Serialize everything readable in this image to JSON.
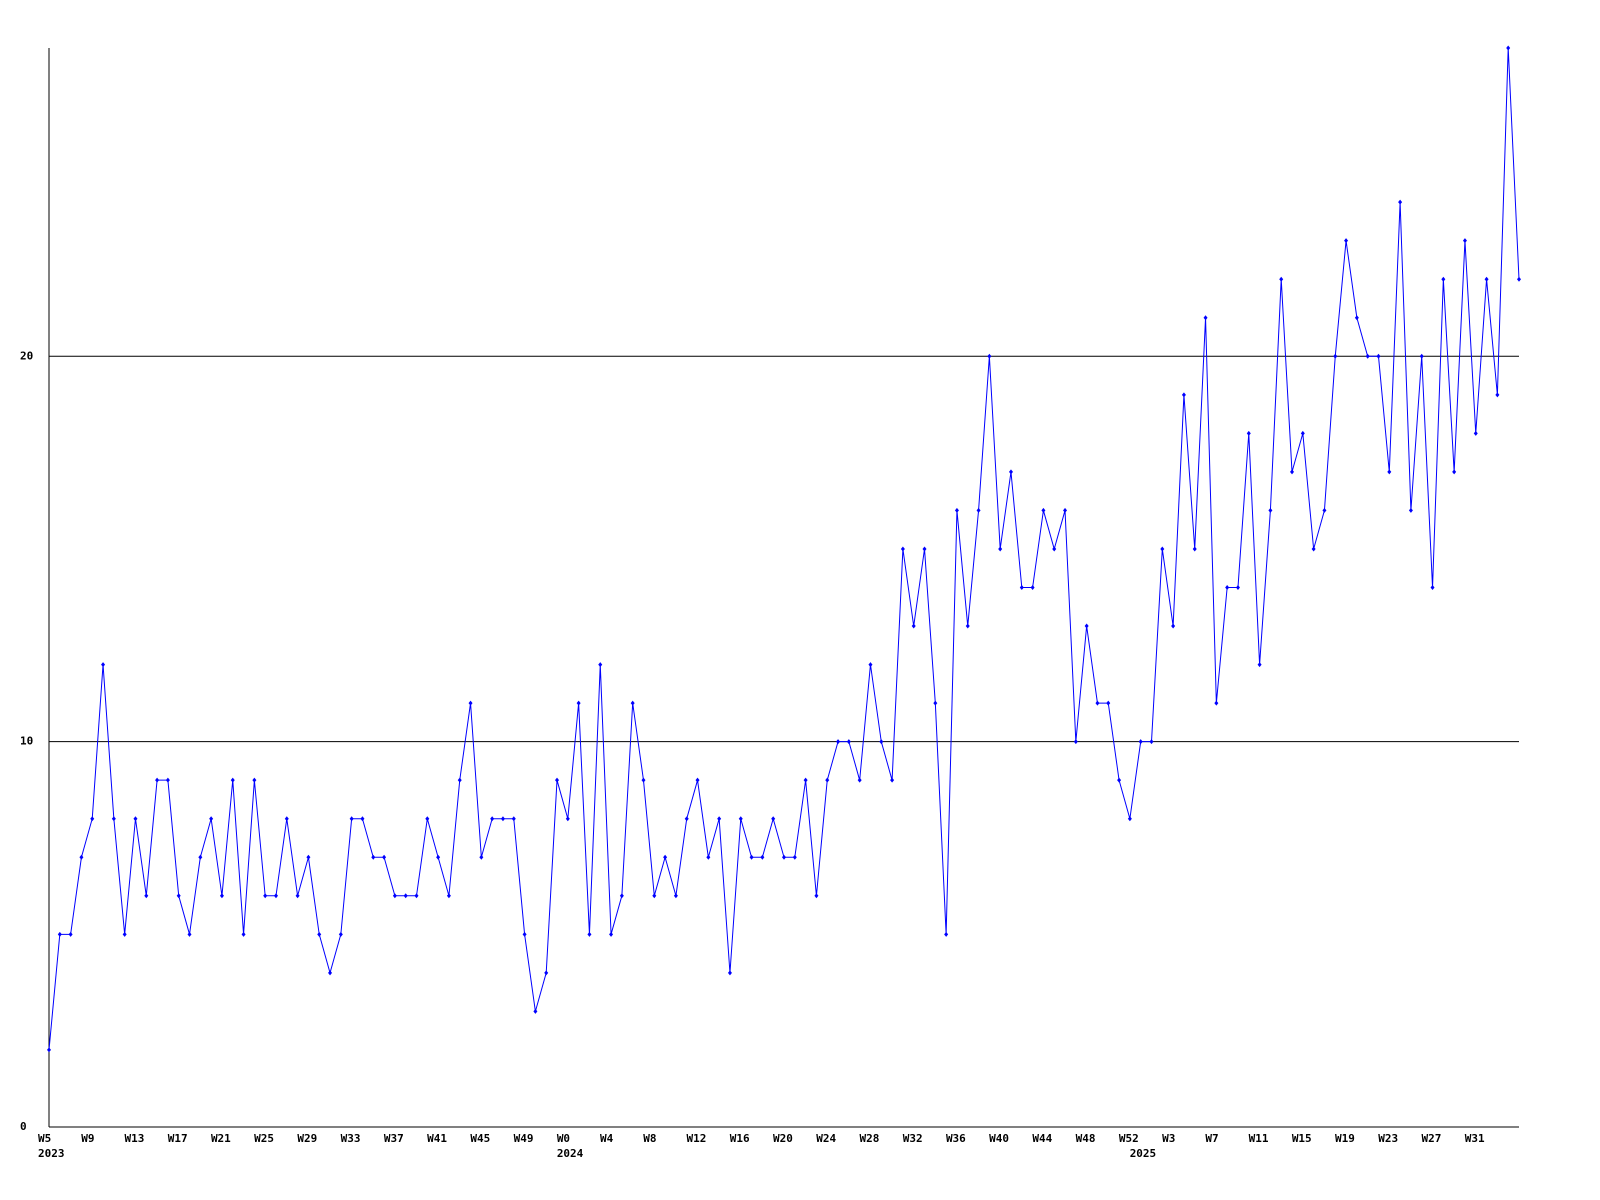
{
  "chart_data": {
    "type": "line",
    "categories": [
      "W5",
      null,
      null,
      null,
      "W9",
      null,
      null,
      null,
      "W13",
      null,
      null,
      null,
      "W17",
      null,
      null,
      null,
      "W21",
      null,
      null,
      null,
      "W25",
      null,
      null,
      null,
      "W29",
      null,
      null,
      null,
      "W33",
      null,
      null,
      null,
      "W37",
      null,
      null,
      null,
      "W41",
      null,
      null,
      null,
      "W45",
      null,
      null,
      null,
      "W49",
      null,
      null,
      null,
      "W0",
      null,
      null,
      null,
      "W4",
      null,
      null,
      null,
      "W8",
      null,
      null,
      null,
      "W12",
      null,
      null,
      null,
      "W16",
      null,
      null,
      null,
      "W20",
      null,
      null,
      null,
      "W24",
      null,
      null,
      null,
      "W28",
      null,
      null,
      null,
      "W32",
      null,
      null,
      null,
      "W36",
      null,
      null,
      null,
      "W40",
      null,
      null,
      null,
      "W44",
      null,
      null,
      null,
      "W48",
      null,
      null,
      null,
      "W52",
      null,
      null,
      null,
      "W3",
      null,
      null,
      null,
      "W7",
      null,
      null,
      null,
      "W11",
      null,
      null,
      null,
      "W15",
      null,
      null,
      null,
      "W19",
      null,
      null,
      null,
      "W23",
      null,
      null,
      null,
      "W27",
      null,
      null,
      null,
      "W31",
      null,
      null,
      null,
      null
    ],
    "category_years": [
      "2023",
      null,
      null,
      null,
      null,
      null,
      null,
      null,
      null,
      null,
      null,
      null,
      null,
      null,
      null,
      null,
      null,
      null,
      null,
      null,
      null,
      null,
      null,
      null,
      null,
      null,
      null,
      null,
      null,
      null,
      null,
      null,
      null,
      null,
      null,
      null,
      null,
      null,
      null,
      null,
      null,
      null,
      null,
      null,
      null,
      null,
      null,
      null,
      "2024",
      null,
      null,
      null,
      null,
      null,
      null,
      null,
      null,
      null,
      null,
      null,
      null,
      null,
      null,
      null,
      null,
      null,
      null,
      null,
      null,
      null,
      null,
      null,
      null,
      null,
      null,
      null,
      null,
      null,
      null,
      null,
      null,
      null,
      null,
      null,
      null,
      null,
      null,
      null,
      null,
      null,
      null,
      null,
      null,
      null,
      null,
      null,
      null,
      null,
      null,
      null,
      null,
      "2025",
      null,
      null,
      null,
      null,
      null,
      null,
      null,
      null,
      null,
      null,
      null,
      null,
      null,
      null,
      null,
      null,
      null,
      null,
      null,
      null,
      null,
      null,
      null,
      null,
      null,
      null,
      null,
      null,
      null,
      null,
      null,
      null,
      null,
      null,
      null
    ],
    "series": [
      {
        "color": "#0000ff",
        "values": [
          2,
          5,
          5,
          7,
          8,
          12,
          8,
          5,
          8,
          6,
          9,
          9,
          6,
          5,
          7,
          8,
          6,
          9,
          5,
          9,
          6,
          6,
          8,
          6,
          7,
          5,
          4,
          5,
          8,
          8,
          7,
          7,
          6,
          6,
          6,
          8,
          7,
          6,
          9,
          11,
          7,
          8,
          8,
          8,
          5,
          3,
          4,
          9,
          8,
          11,
          5,
          12,
          5,
          6,
          11,
          9,
          6,
          7,
          6,
          8,
          9,
          7,
          8,
          4,
          8,
          7,
          7,
          8,
          7,
          7,
          9,
          6,
          9,
          10,
          10,
          9,
          12,
          10,
          9,
          15,
          13,
          15,
          11,
          5,
          16,
          13,
          16,
          20,
          15,
          17,
          14,
          14,
          16,
          15,
          16,
          10,
          13,
          11,
          11,
          9,
          8,
          10,
          10,
          15,
          13,
          19,
          15,
          21,
          11,
          14,
          14,
          18,
          12,
          16,
          22,
          17,
          18,
          15,
          16,
          20,
          23,
          21,
          20,
          20,
          17,
          24,
          16,
          20,
          14,
          22,
          17,
          23,
          18,
          22,
          19,
          28,
          22
        ]
      }
    ],
    "ylim": [
      0,
      28
    ],
    "yticks": [
      0,
      10,
      20
    ],
    "grid": true
  }
}
